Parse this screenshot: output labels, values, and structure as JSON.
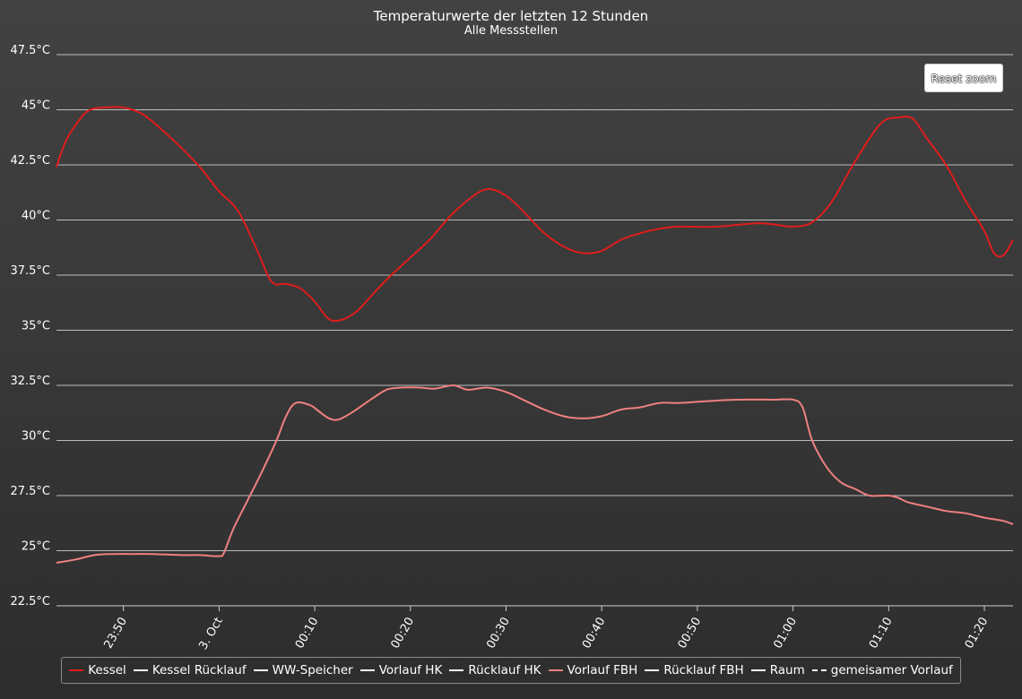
{
  "title": "Temperaturwerte der letzten 12 Stunden",
  "subtitle": "Alle Messstellen",
  "reset_zoom_label": "Reset zoom",
  "chart_data": {
    "type": "line",
    "title": "Temperaturwerte der letzten 12 Stunden",
    "subtitle": "Alle Messstellen",
    "ylim": [
      22.5,
      47.5
    ],
    "y_ticks": [
      22.5,
      25,
      27.5,
      30,
      32.5,
      35,
      37.5,
      40,
      42.5,
      45,
      47.5
    ],
    "y_tick_labels": [
      "22.5°C",
      "25°C",
      "27.5°C",
      "30°C",
      "32.5°C",
      "35°C",
      "37.5°C",
      "40°C",
      "42.5°C",
      "45°C",
      "47.5°C"
    ],
    "x_range_min": [
      -17,
      83
    ],
    "x_ticks": [
      -10,
      0,
      10,
      20,
      30,
      40,
      50,
      60,
      70,
      80
    ],
    "x_tick_labels": [
      "23:50",
      "3. Oct",
      "00:10",
      "00:20",
      "00:30",
      "00:40",
      "00:50",
      "01:00",
      "01:10",
      "01:20"
    ],
    "grid": true,
    "legend_position": "bottom",
    "series": [
      {
        "name": "Kessel",
        "color": "#e01c1c",
        "visible": true,
        "points": [
          [
            -17,
            42.4
          ],
          [
            -16,
            43.6
          ],
          [
            -14.5,
            44.6
          ],
          [
            -13.5,
            45.0
          ],
          [
            -12,
            45.1
          ],
          [
            -10,
            45.1
          ],
          [
            -8,
            44.8
          ],
          [
            -6,
            44.1
          ],
          [
            -4,
            43.3
          ],
          [
            -2,
            42.4
          ],
          [
            0,
            41.3
          ],
          [
            2,
            40.4
          ],
          [
            4,
            38.6
          ],
          [
            5.5,
            37.2
          ],
          [
            7,
            37.1
          ],
          [
            8.5,
            36.9
          ],
          [
            10,
            36.3
          ],
          [
            11.5,
            35.5
          ],
          [
            13,
            35.5
          ],
          [
            14.5,
            35.9
          ],
          [
            16,
            36.6
          ],
          [
            18,
            37.5
          ],
          [
            20,
            38.3
          ],
          [
            22,
            39.1
          ],
          [
            24,
            40.1
          ],
          [
            26,
            40.9
          ],
          [
            28,
            41.4
          ],
          [
            30,
            41.1
          ],
          [
            32,
            40.3
          ],
          [
            34,
            39.4
          ],
          [
            36,
            38.8
          ],
          [
            38,
            38.5
          ],
          [
            40,
            38.6
          ],
          [
            42,
            39.1
          ],
          [
            44,
            39.4
          ],
          [
            46,
            39.6
          ],
          [
            48,
            39.7
          ],
          [
            52,
            39.7
          ],
          [
            56,
            39.85
          ],
          [
            58,
            39.8
          ],
          [
            60,
            39.7
          ],
          [
            62,
            39.9
          ],
          [
            64,
            40.8
          ],
          [
            66,
            42.3
          ],
          [
            68,
            43.7
          ],
          [
            69.5,
            44.5
          ],
          [
            71,
            44.65
          ],
          [
            72.5,
            44.6
          ],
          [
            74,
            43.7
          ],
          [
            76,
            42.5
          ],
          [
            78,
            40.9
          ],
          [
            80,
            39.5
          ],
          [
            81,
            38.5
          ],
          [
            82,
            38.4
          ],
          [
            83,
            39.1
          ]
        ]
      },
      {
        "name": "Kessel Rücklauf",
        "color": "#ffffff",
        "visible": false
      },
      {
        "name": "WW-Speicher",
        "color": "#ffffff",
        "visible": false
      },
      {
        "name": "Vorlauf HK",
        "color": "#ffffff",
        "visible": false
      },
      {
        "name": "Rücklauf HK",
        "color": "#ffffff",
        "visible": false
      },
      {
        "name": "Vorlauf FBH",
        "color": "#f08080",
        "visible": true,
        "points": [
          [
            -17,
            24.45
          ],
          [
            -15,
            24.6
          ],
          [
            -13,
            24.8
          ],
          [
            -11,
            24.85
          ],
          [
            -9,
            24.85
          ],
          [
            -7,
            24.85
          ],
          [
            -4,
            24.8
          ],
          [
            -2,
            24.8
          ],
          [
            0,
            24.75
          ],
          [
            0.5,
            24.9
          ],
          [
            1.5,
            26.0
          ],
          [
            3,
            27.3
          ],
          [
            4.5,
            28.6
          ],
          [
            6,
            30.0
          ],
          [
            7,
            31.1
          ],
          [
            8,
            31.7
          ],
          [
            9.5,
            31.6
          ],
          [
            10.5,
            31.3
          ],
          [
            11.5,
            31.0
          ],
          [
            12.5,
            30.95
          ],
          [
            14,
            31.3
          ],
          [
            16,
            31.9
          ],
          [
            17.5,
            32.3
          ],
          [
            19,
            32.4
          ],
          [
            21,
            32.4
          ],
          [
            22.5,
            32.35
          ],
          [
            24.5,
            32.5
          ],
          [
            26,
            32.3
          ],
          [
            28,
            32.4
          ],
          [
            30,
            32.2
          ],
          [
            32,
            31.8
          ],
          [
            34,
            31.4
          ],
          [
            36,
            31.1
          ],
          [
            38,
            31.0
          ],
          [
            40,
            31.1
          ],
          [
            42,
            31.4
          ],
          [
            44,
            31.5
          ],
          [
            46,
            31.7
          ],
          [
            48,
            31.7
          ],
          [
            50,
            31.75
          ],
          [
            54,
            31.85
          ],
          [
            58,
            31.85
          ],
          [
            60,
            31.85
          ],
          [
            61,
            31.5
          ],
          [
            62,
            30.0
          ],
          [
            63.5,
            28.8
          ],
          [
            65,
            28.1
          ],
          [
            66.5,
            27.8
          ],
          [
            68,
            27.5
          ],
          [
            70,
            27.5
          ],
          [
            71,
            27.4
          ],
          [
            72,
            27.2
          ],
          [
            74,
            27.0
          ],
          [
            76,
            26.8
          ],
          [
            78,
            26.7
          ],
          [
            80,
            26.5
          ],
          [
            82,
            26.35
          ],
          [
            83,
            26.2
          ]
        ]
      },
      {
        "name": "Rücklauf FBH",
        "color": "#ffffff",
        "visible": false
      },
      {
        "name": "Raum",
        "color": "#ffffff",
        "visible": false
      },
      {
        "name": "gemeisamer Vorlauf",
        "color": "#ffffff",
        "visible": false,
        "dash": "dashed"
      }
    ]
  }
}
